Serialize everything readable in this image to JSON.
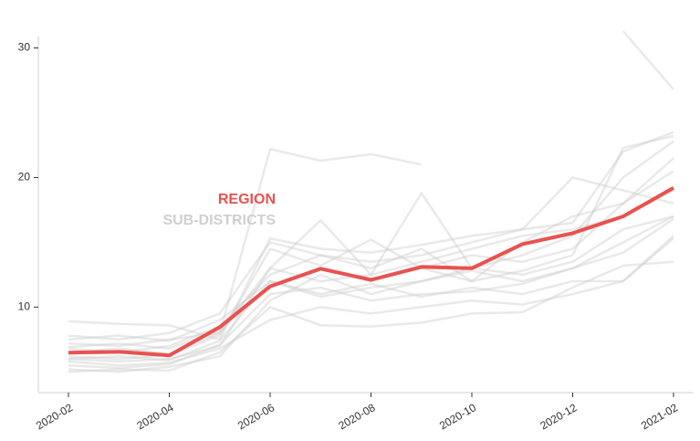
{
  "chart_data": {
    "type": "line",
    "categories": [
      "2020-02",
      null,
      "2020-04",
      null,
      "2020-06",
      null,
      "2020-08",
      null,
      "2020-10",
      null,
      "2020-12",
      null,
      "2021-02"
    ],
    "ylim": [
      3.4,
      33.7
    ],
    "yticks": [
      10,
      20,
      30
    ],
    "series": [
      {
        "name": "REGION",
        "color": "#e8524f",
        "values": [
          6.48,
          6.55,
          6.27,
          8.45,
          11.6,
          12.96,
          12.1,
          13.1,
          13.0,
          14.86,
          15.7,
          17.0,
          19.2
        ]
      },
      {
        "name": "SUB-DISTRICTS",
        "color": "#cfcfcf",
        "lines": [
          [
            8.9,
            8.7,
            8.6,
            7.5,
            15.3,
            14.5,
            14.2,
            14.8,
            15.5,
            16,
            16.5,
            22,
            23.5
          ],
          [
            7.2,
            7.0,
            7.5,
            8,
            22.2,
            21.3,
            21.8,
            21.0,
            null,
            null,
            null,
            null,
            null
          ],
          [
            null,
            null,
            null,
            null,
            null,
            null,
            null,
            null,
            null,
            null,
            null,
            31.3,
            26.8
          ],
          [
            6,
            5.8,
            6,
            7,
            13,
            16.7,
            12.5,
            18.8,
            13,
            14,
            15.5,
            20,
            22.8
          ],
          [
            5,
            5.2,
            5.1,
            6.5,
            10,
            8.6,
            8.5,
            8.8,
            9.5,
            9.6,
            11.5,
            13.2,
            13.5
          ],
          [
            5.5,
            5.3,
            5.6,
            7.1,
            11,
            11.5,
            10.5,
            11,
            11.2,
            11.8,
            13,
            15,
            17
          ],
          [
            6.8,
            6.5,
            7,
            8.5,
            12.5,
            14,
            13,
            14.5,
            12,
            15,
            17,
            18,
            20.5
          ],
          [
            6.2,
            6,
            6.3,
            7.8,
            14.5,
            13.2,
            15.2,
            13,
            14,
            13.5,
            14.5,
            18,
            21.5
          ],
          [
            7.5,
            7.8,
            7.4,
            9,
            12,
            11,
            11.8,
            10.8,
            11.5,
            11,
            12,
            12,
            15.3
          ],
          [
            5.8,
            5.5,
            5.7,
            6.8,
            9,
            10,
            9.5,
            10,
            10.5,
            10.2,
            11,
            12,
            15.5
          ],
          [
            6.5,
            6.8,
            6.4,
            8,
            13,
            12,
            12.5,
            13.5,
            14.5,
            15.5,
            16,
            17,
            19
          ],
          [
            7.8,
            7.5,
            8,
            9.5,
            15,
            14,
            13.5,
            14,
            15,
            16,
            20,
            19,
            18
          ],
          [
            5.2,
            5,
            5.4,
            6.2,
            10.5,
            12.5,
            11,
            12,
            13,
            12.5,
            13.5,
            16,
            17
          ],
          [
            6.9,
            7.2,
            6.8,
            8.2,
            11.5,
            13,
            12,
            13,
            12,
            12.8,
            14,
            22.3,
            23.2
          ],
          [
            6,
            6.2,
            5.9,
            7.4,
            12,
            10.8,
            11.5,
            12,
            12.8,
            12,
            13,
            14.2,
            16.8
          ]
        ]
      }
    ]
  }
}
